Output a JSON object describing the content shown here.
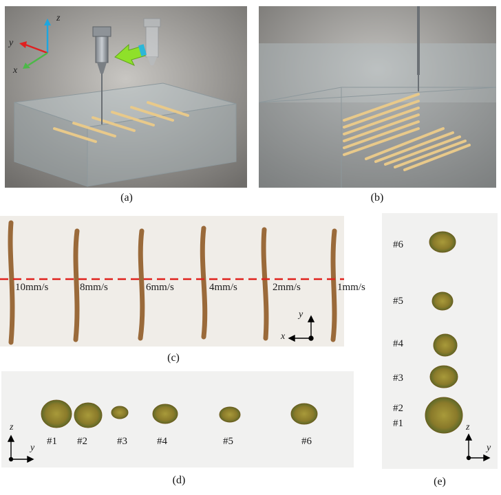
{
  "captions": {
    "a": "(a)",
    "b": "(b)",
    "c": "(c)",
    "d": "(d)",
    "e": "(e)"
  },
  "axes": {
    "x": "x",
    "y": "y",
    "z": "z"
  },
  "panel_c": {
    "speeds": [
      "10mm/s",
      "8mm/s",
      "6mm/s",
      "4mm/s",
      "2mm/s",
      "1mm/s"
    ]
  },
  "panel_d": {
    "samples": [
      "#1",
      "#2",
      "#3",
      "#4",
      "#5",
      "#6"
    ]
  },
  "panel_e": {
    "samples_top": [
      "#6",
      "#5",
      "#4",
      "#3"
    ],
    "samples_bottom": [
      "#2",
      "#1"
    ]
  },
  "colors": {
    "filament": "#e8c98a",
    "trace": "#9a6a3a",
    "dash_line": "#e0211c",
    "arrow_green": "#8fe02a"
  }
}
